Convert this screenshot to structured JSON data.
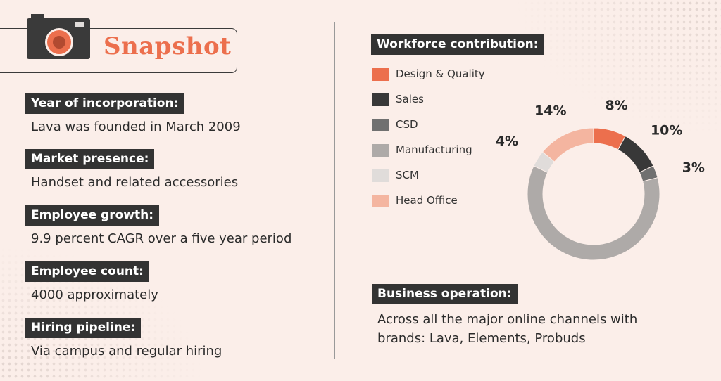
{
  "header": {
    "title": "Snapshot"
  },
  "facts": [
    {
      "label": "Year of incorporation:",
      "value": "Lava was founded in March 2009"
    },
    {
      "label": "Market presence:",
      "value": "Handset and related accessories"
    },
    {
      "label": "Employee growth:",
      "value": "9.9 percent CAGR over a five year period"
    },
    {
      "label": "Employee count:",
      "value": "4000 approximately"
    },
    {
      "label": "Hiring pipeline:",
      "value": "Via campus and regular hiring"
    }
  ],
  "business": {
    "label": "Business operation:",
    "text": "Across all the major online channels with brands: Lava, Elements, Probuds"
  },
  "chart_data": {
    "type": "pie",
    "title": "Workforce contribution:",
    "legend_position": "left",
    "categories": [
      "Design & Quality",
      "Sales",
      "CSD",
      "Manufacturing",
      "SCM",
      "Head Office"
    ],
    "values": [
      8,
      10,
      3,
      61,
      4,
      14
    ],
    "data_labels": [
      "8%",
      "10%",
      "3%",
      "61%",
      "4%",
      "14%"
    ],
    "colors": [
      "#ec6f4d",
      "#383838",
      "#707070",
      "#aeaaa8",
      "#e0dcda",
      "#f4b5a0"
    ]
  },
  "icons": {
    "title_icon": "camera-icon"
  }
}
